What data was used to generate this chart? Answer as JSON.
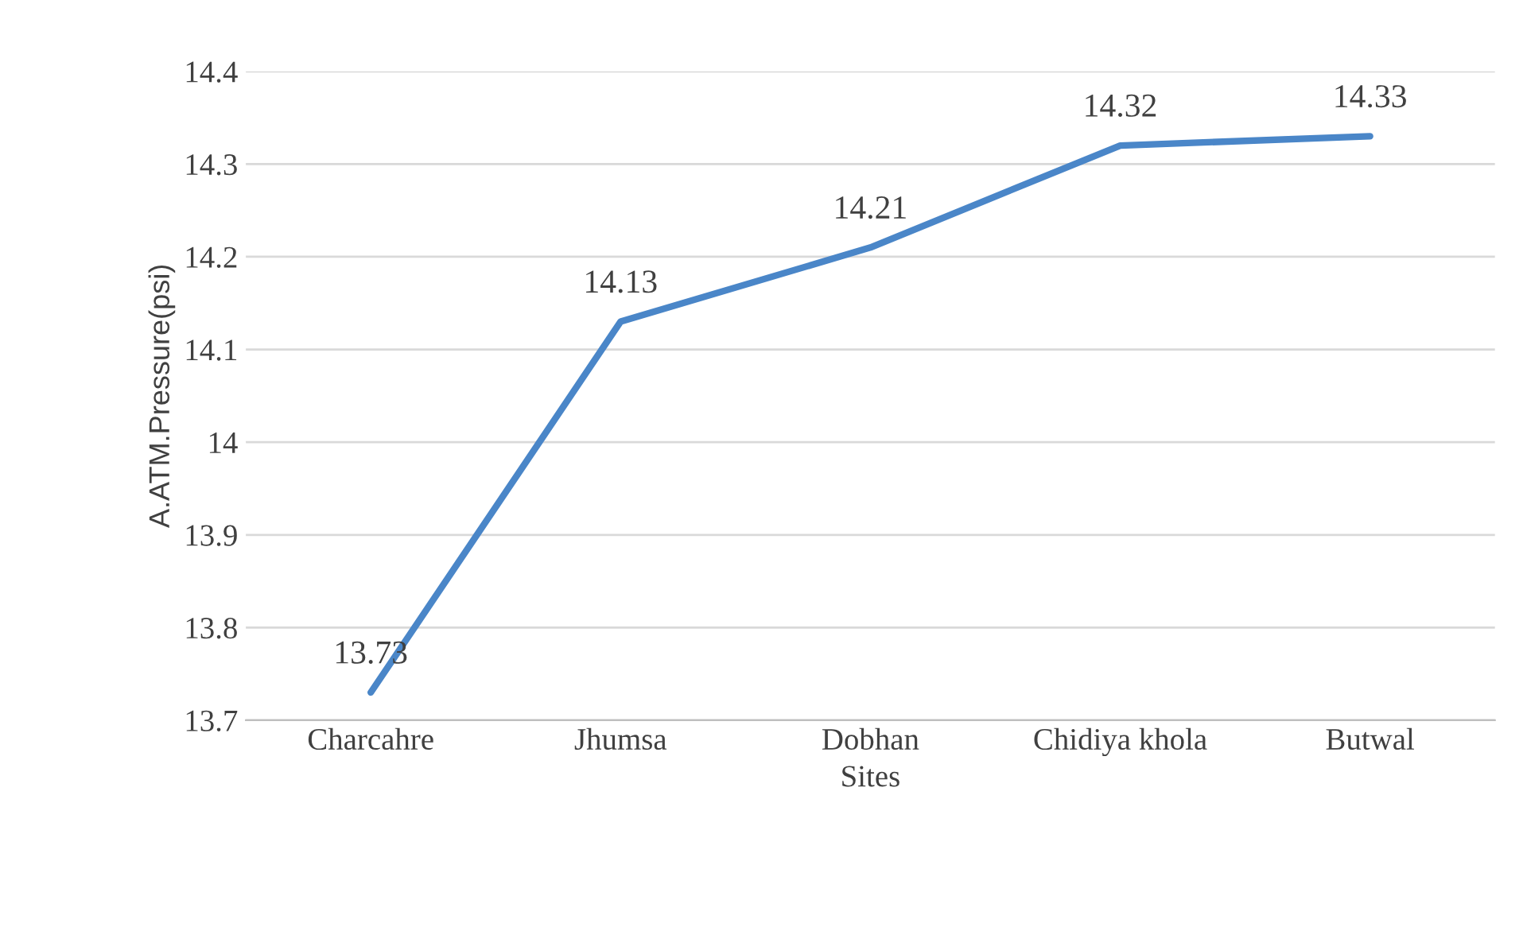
{
  "chart_data": {
    "type": "line",
    "xlabel": "Sites",
    "ylabel": "A.ATM.Pressure(psi)",
    "categories": [
      "Charcahre",
      "Jhumsa",
      "Dobhan",
      "Chidiya khola",
      "Butwal"
    ],
    "series": [
      {
        "color": "#4a86c8",
        "values": [
          13.73,
          14.13,
          14.21,
          14.32,
          14.33
        ]
      }
    ],
    "ylim": [
      13.7,
      14.4
    ],
    "yticks": [
      {
        "value": 13.7,
        "label": "13.7"
      },
      {
        "value": 13.8,
        "label": "13.8"
      },
      {
        "value": 13.9,
        "label": "13.9"
      },
      {
        "value": 14.0,
        "label": "14"
      },
      {
        "value": 14.1,
        "label": "14.1"
      },
      {
        "value": 14.2,
        "label": "14.2"
      },
      {
        "value": 14.3,
        "label": "14.3"
      },
      {
        "value": 14.4,
        "label": "14.4"
      }
    ],
    "grid": "y",
    "data_labels": true,
    "marker": "none",
    "line_style": "solid"
  }
}
